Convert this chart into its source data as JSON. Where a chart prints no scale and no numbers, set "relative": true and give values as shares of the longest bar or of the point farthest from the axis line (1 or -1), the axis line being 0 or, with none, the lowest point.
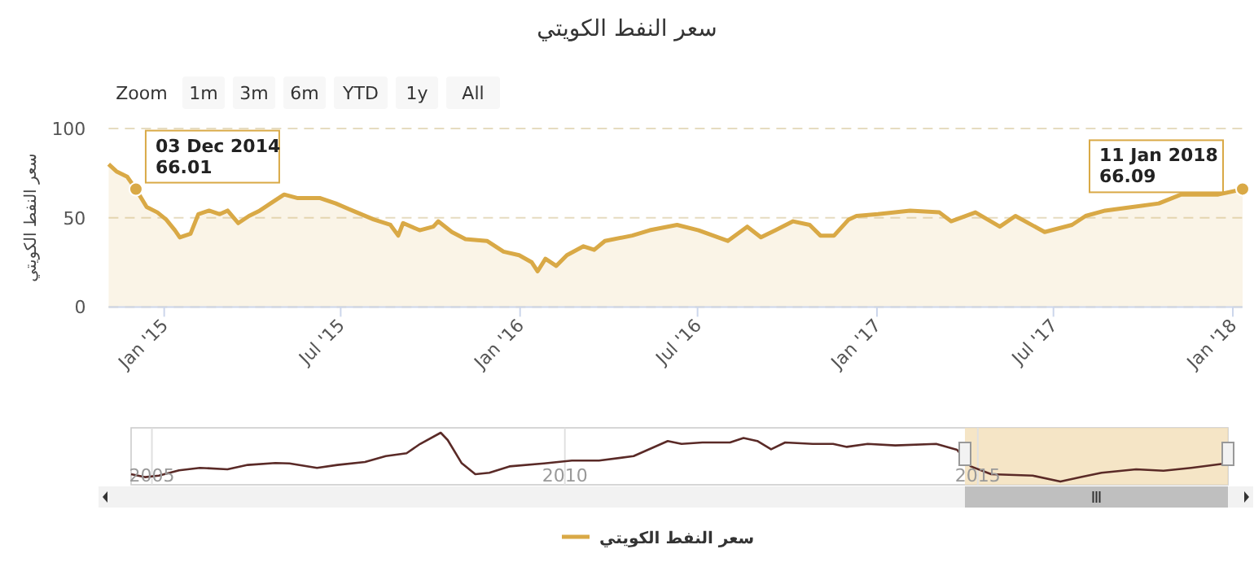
{
  "chart_data": [
    {
      "type": "area",
      "title": "سعر النفط الكويتي",
      "ylabel": "سعر النفط الكويتي",
      "x": [
        "2014-11-05",
        "2014-11-13",
        "2014-11-24",
        "2014-12-03",
        "2014-12-14",
        "2014-12-25",
        "2015-01-03",
        "2015-01-12",
        "2015-01-17",
        "2015-01-28",
        "2015-02-05",
        "2015-02-16",
        "2015-02-27",
        "2015-03-07",
        "2015-03-18",
        "2015-03-29",
        "2015-04-09",
        "2015-04-20",
        "2015-05-04",
        "2015-05-18",
        "2015-06-10",
        "2015-06-26",
        "2015-07-13",
        "2015-08-04",
        "2015-08-21",
        "2015-08-29",
        "2015-09-03",
        "2015-09-20",
        "2015-10-04",
        "2015-10-09",
        "2015-10-23",
        "2015-11-06",
        "2015-11-28",
        "2015-12-15",
        "2015-12-31",
        "2016-01-13",
        "2016-01-19",
        "2016-01-27",
        "2016-02-07",
        "2016-02-18",
        "2016-03-06",
        "2016-03-17",
        "2016-03-28",
        "2016-04-25",
        "2016-05-13",
        "2016-06-10",
        "2016-07-02",
        "2016-08-01",
        "2016-08-21",
        "2016-09-04",
        "2016-09-19",
        "2016-10-07",
        "2016-10-24",
        "2016-11-04",
        "2016-11-18",
        "2016-12-03",
        "2016-12-11",
        "2017-01-02",
        "2017-02-04",
        "2017-03-06",
        "2017-03-18",
        "2017-04-12",
        "2017-05-07",
        "2017-05-23",
        "2017-06-22",
        "2017-07-20",
        "2017-08-03",
        "2017-08-23",
        "2017-10-17",
        "2017-11-09",
        "2017-12-17",
        "2018-01-11"
      ],
      "series": [
        {
          "name": "سعر النفط الكويتي",
          "color": "#d9a946",
          "values": [
            80,
            76,
            73,
            66,
            56,
            53,
            49,
            43,
            39,
            41,
            52,
            54,
            52,
            54,
            47,
            51,
            54,
            58,
            63,
            61,
            61,
            58,
            54,
            49,
            46,
            40,
            47,
            43,
            45,
            48,
            42,
            38,
            37,
            31,
            29,
            25,
            20,
            27,
            23,
            29,
            34,
            32,
            37,
            40,
            43,
            46,
            43,
            37,
            45,
            39,
            43,
            48,
            46,
            40,
            40,
            49,
            51,
            52,
            54,
            53,
            48,
            53,
            45,
            51,
            42,
            46,
            51,
            54,
            58,
            63,
            63,
            66
          ]
        }
      ],
      "xlim": [
        "2014-11-05",
        "2018-01-11"
      ],
      "ylim": [
        0,
        100
      ],
      "yticks": [
        0,
        50,
        100
      ],
      "xticks": [
        {
          "value": "2015-01-01",
          "label": "Jan '15"
        },
        {
          "value": "2015-07-01",
          "label": "Jul '15"
        },
        {
          "value": "2016-01-01",
          "label": "Jan '16"
        },
        {
          "value": "2016-07-01",
          "label": "Jul '16"
        },
        {
          "value": "2017-01-01",
          "label": "Jan '17"
        },
        {
          "value": "2017-07-01",
          "label": "Jul '17"
        },
        {
          "value": "2018-01-01",
          "label": "Jan '18"
        }
      ],
      "grid": "y",
      "legend": "bottom",
      "annotations": [
        "Zoom",
        "1m",
        "3m",
        "6m",
        "YTD",
        "1y",
        "All",
        {
          "text": "03 Dec 2014\n66.01",
          "x": "2014-12-03",
          "y": 66.01
        },
        {
          "text": "11 Jan 2018\n66.09",
          "x": "2018-01-11",
          "y": 66.09
        }
      ]
    },
    {
      "type": "line",
      "relative": true,
      "x": [
        "2004-10",
        "2004-12",
        "2005-02",
        "2005-05",
        "2005-08",
        "2005-12",
        "2006-03",
        "2006-07",
        "2006-09",
        "2007-01",
        "2007-04",
        "2007-08",
        "2007-11",
        "2008-02",
        "2008-04",
        "2008-07",
        "2008-08",
        "2008-10",
        "2008-12",
        "2009-02",
        "2009-05",
        "2009-10",
        "2010-02",
        "2010-06",
        "2010-11",
        "2011-04",
        "2011-06",
        "2011-09",
        "2012-01",
        "2012-03",
        "2012-05",
        "2012-07",
        "2012-09",
        "2013-01",
        "2013-04",
        "2013-06",
        "2013-09",
        "2014-01",
        "2014-07",
        "2014-10",
        "2014-12",
        "2015-03",
        "2015-09",
        "2016-01",
        "2016-04",
        "2016-07",
        "2016-12",
        "2017-04",
        "2017-08",
        "2018-01"
      ],
      "series": [
        {
          "color": "#5a2a27",
          "values": [
            0.15,
            0.09,
            0.12,
            0.23,
            0.28,
            0.25,
            0.34,
            0.38,
            0.37,
            0.28,
            0.34,
            0.4,
            0.52,
            0.58,
            0.77,
            1,
            0.85,
            0.38,
            0.15,
            0.18,
            0.31,
            0.37,
            0.43,
            0.43,
            0.52,
            0.83,
            0.77,
            0.8,
            0.8,
            0.89,
            0.83,
            0.66,
            0.8,
            0.77,
            0.77,
            0.71,
            0.77,
            0.74,
            0.77,
            0.65,
            0.31,
            0.15,
            0.12,
            0,
            0.09,
            0.18,
            0.25,
            0.22,
            0.28,
            0.37
          ]
        }
      ],
      "xlim": [
        "2004-10-01",
        "2018-01-11"
      ],
      "xticks": [
        "2005",
        "2010",
        "2015"
      ],
      "grid": "x",
      "bands": [
        {
          "axis": "x",
          "from": "2014-11-05",
          "to": "2018-01-11",
          "color": "#f3dfb8"
        }
      ]
    }
  ]
}
